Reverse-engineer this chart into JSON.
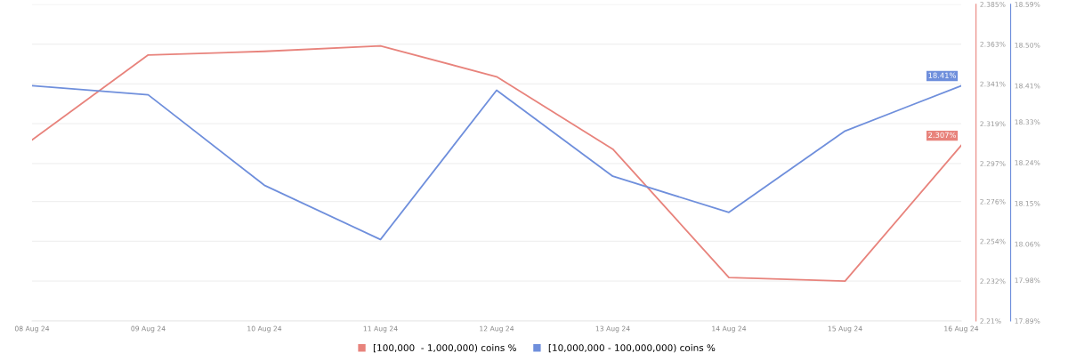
{
  "chart_data": {
    "type": "line",
    "categories": [
      "08 Aug 24",
      "09 Aug 24",
      "10 Aug 24",
      "11 Aug 24",
      "12 Aug 24",
      "13 Aug 24",
      "14 Aug 24",
      "15 Aug 24",
      "16 Aug 24"
    ],
    "series": [
      {
        "name": "[100,000  - 1,000,000) coins %",
        "color": "#e8837c",
        "values": [
          2.31,
          2.357,
          2.359,
          2.362,
          2.345,
          2.305,
          2.234,
          2.232,
          2.307
        ],
        "value_labels": [
          null,
          null,
          null,
          null,
          null,
          null,
          null,
          null,
          "2.307%"
        ]
      },
      {
        "name": "[10,000,000 - 100,000,000) coins %",
        "color": "#6f8fdc",
        "axis": "y2",
        "values": [
          18.41,
          18.39,
          18.19,
          18.07,
          18.4,
          18.21,
          18.13,
          18.31,
          18.41
        ],
        "value_labels": [
          null,
          null,
          null,
          null,
          null,
          null,
          null,
          null,
          "18.41%"
        ]
      }
    ],
    "ylim": [
      2.21,
      2.385
    ],
    "yticks": [
      {
        "value": 2.21,
        "label": "2.21%"
      },
      {
        "value": 2.232,
        "label": "2.232%"
      },
      {
        "value": 2.254,
        "label": "2.254%"
      },
      {
        "value": 2.276,
        "label": "2.276%"
      },
      {
        "value": 2.297,
        "label": "2.297%"
      },
      {
        "value": 2.319,
        "label": "2.319%"
      },
      {
        "value": 2.341,
        "label": "2.341%"
      },
      {
        "value": 2.363,
        "label": "2.363%"
      },
      {
        "value": 2.385,
        "label": "2.385%"
      }
    ],
    "y2lim": [
      17.89,
      18.59
    ],
    "y2ticks": [
      {
        "value": 17.89,
        "label": "17.89%"
      },
      {
        "value": 17.98,
        "label": "17.98%"
      },
      {
        "value": 18.06,
        "label": "18.06%"
      },
      {
        "value": 18.15,
        "label": "18.15%"
      },
      {
        "value": 18.24,
        "label": "18.24%"
      },
      {
        "value": 18.33,
        "label": "18.33%"
      },
      {
        "value": 18.41,
        "label": "18.41%"
      },
      {
        "value": 18.5,
        "label": "18.50%"
      },
      {
        "value": 18.59,
        "label": "18.59%"
      }
    ],
    "grid": "y",
    "legend": "bottom",
    "marker": "none",
    "line_style": "solid"
  }
}
